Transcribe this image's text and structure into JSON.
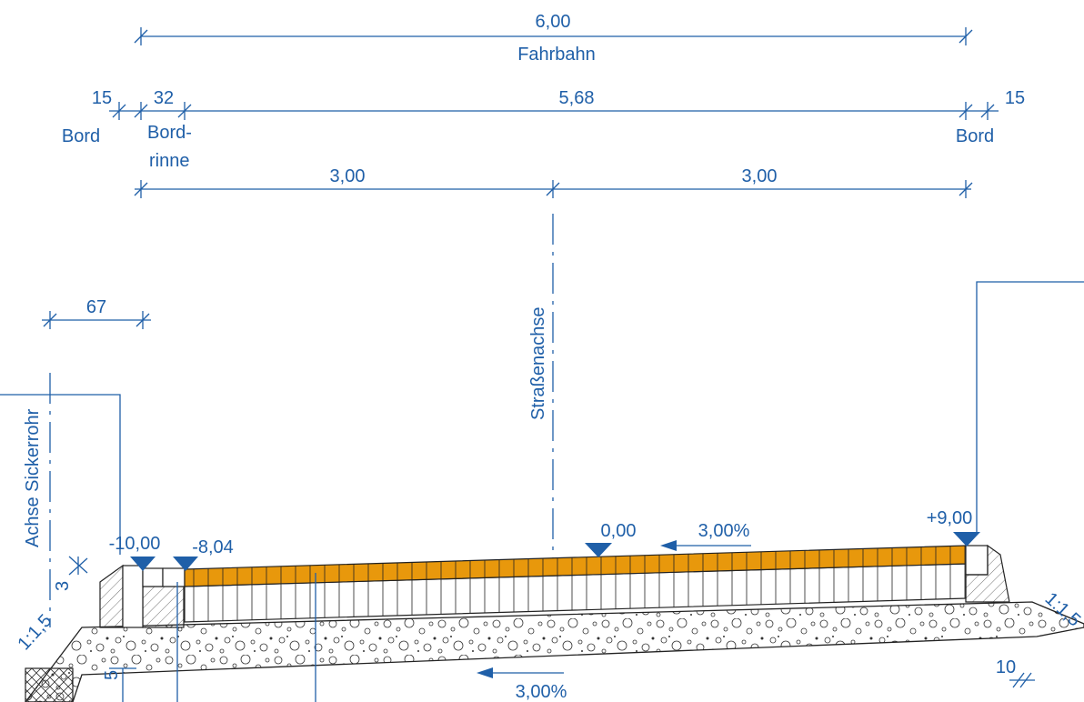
{
  "colors": {
    "annotation": "#1f5fa8",
    "asphalt": "#e8980c",
    "outline": "#222222",
    "background": "#ffffff"
  },
  "dimensions": {
    "total_width": "6,00",
    "carriageway": "Fahrbahn",
    "curb_left": "15",
    "gutter": "32",
    "inner_width": "5,68",
    "curb_right": "15",
    "half_left": "3,00",
    "half_right": "3,00",
    "pipe_offset": "67",
    "depth_small": "3",
    "depth_bottom": "5",
    "edge_right": "10"
  },
  "labels": {
    "curb_left": "Bord",
    "gutter_line1": "Bord-",
    "gutter_line2": "rinne",
    "curb_right": "Bord",
    "road_axis": "Straßenachse",
    "pipe_axis": "Achse Sickerrohr"
  },
  "elevations": {
    "left_outer": "-10,00",
    "left_inner": "-8,04",
    "center": "0,00",
    "right": "+9,00"
  },
  "slopes": {
    "surface": "3,00%",
    "subgrade": "3,00%",
    "embankment_left": "1:1,5",
    "embankment_right": "1:1,5"
  }
}
